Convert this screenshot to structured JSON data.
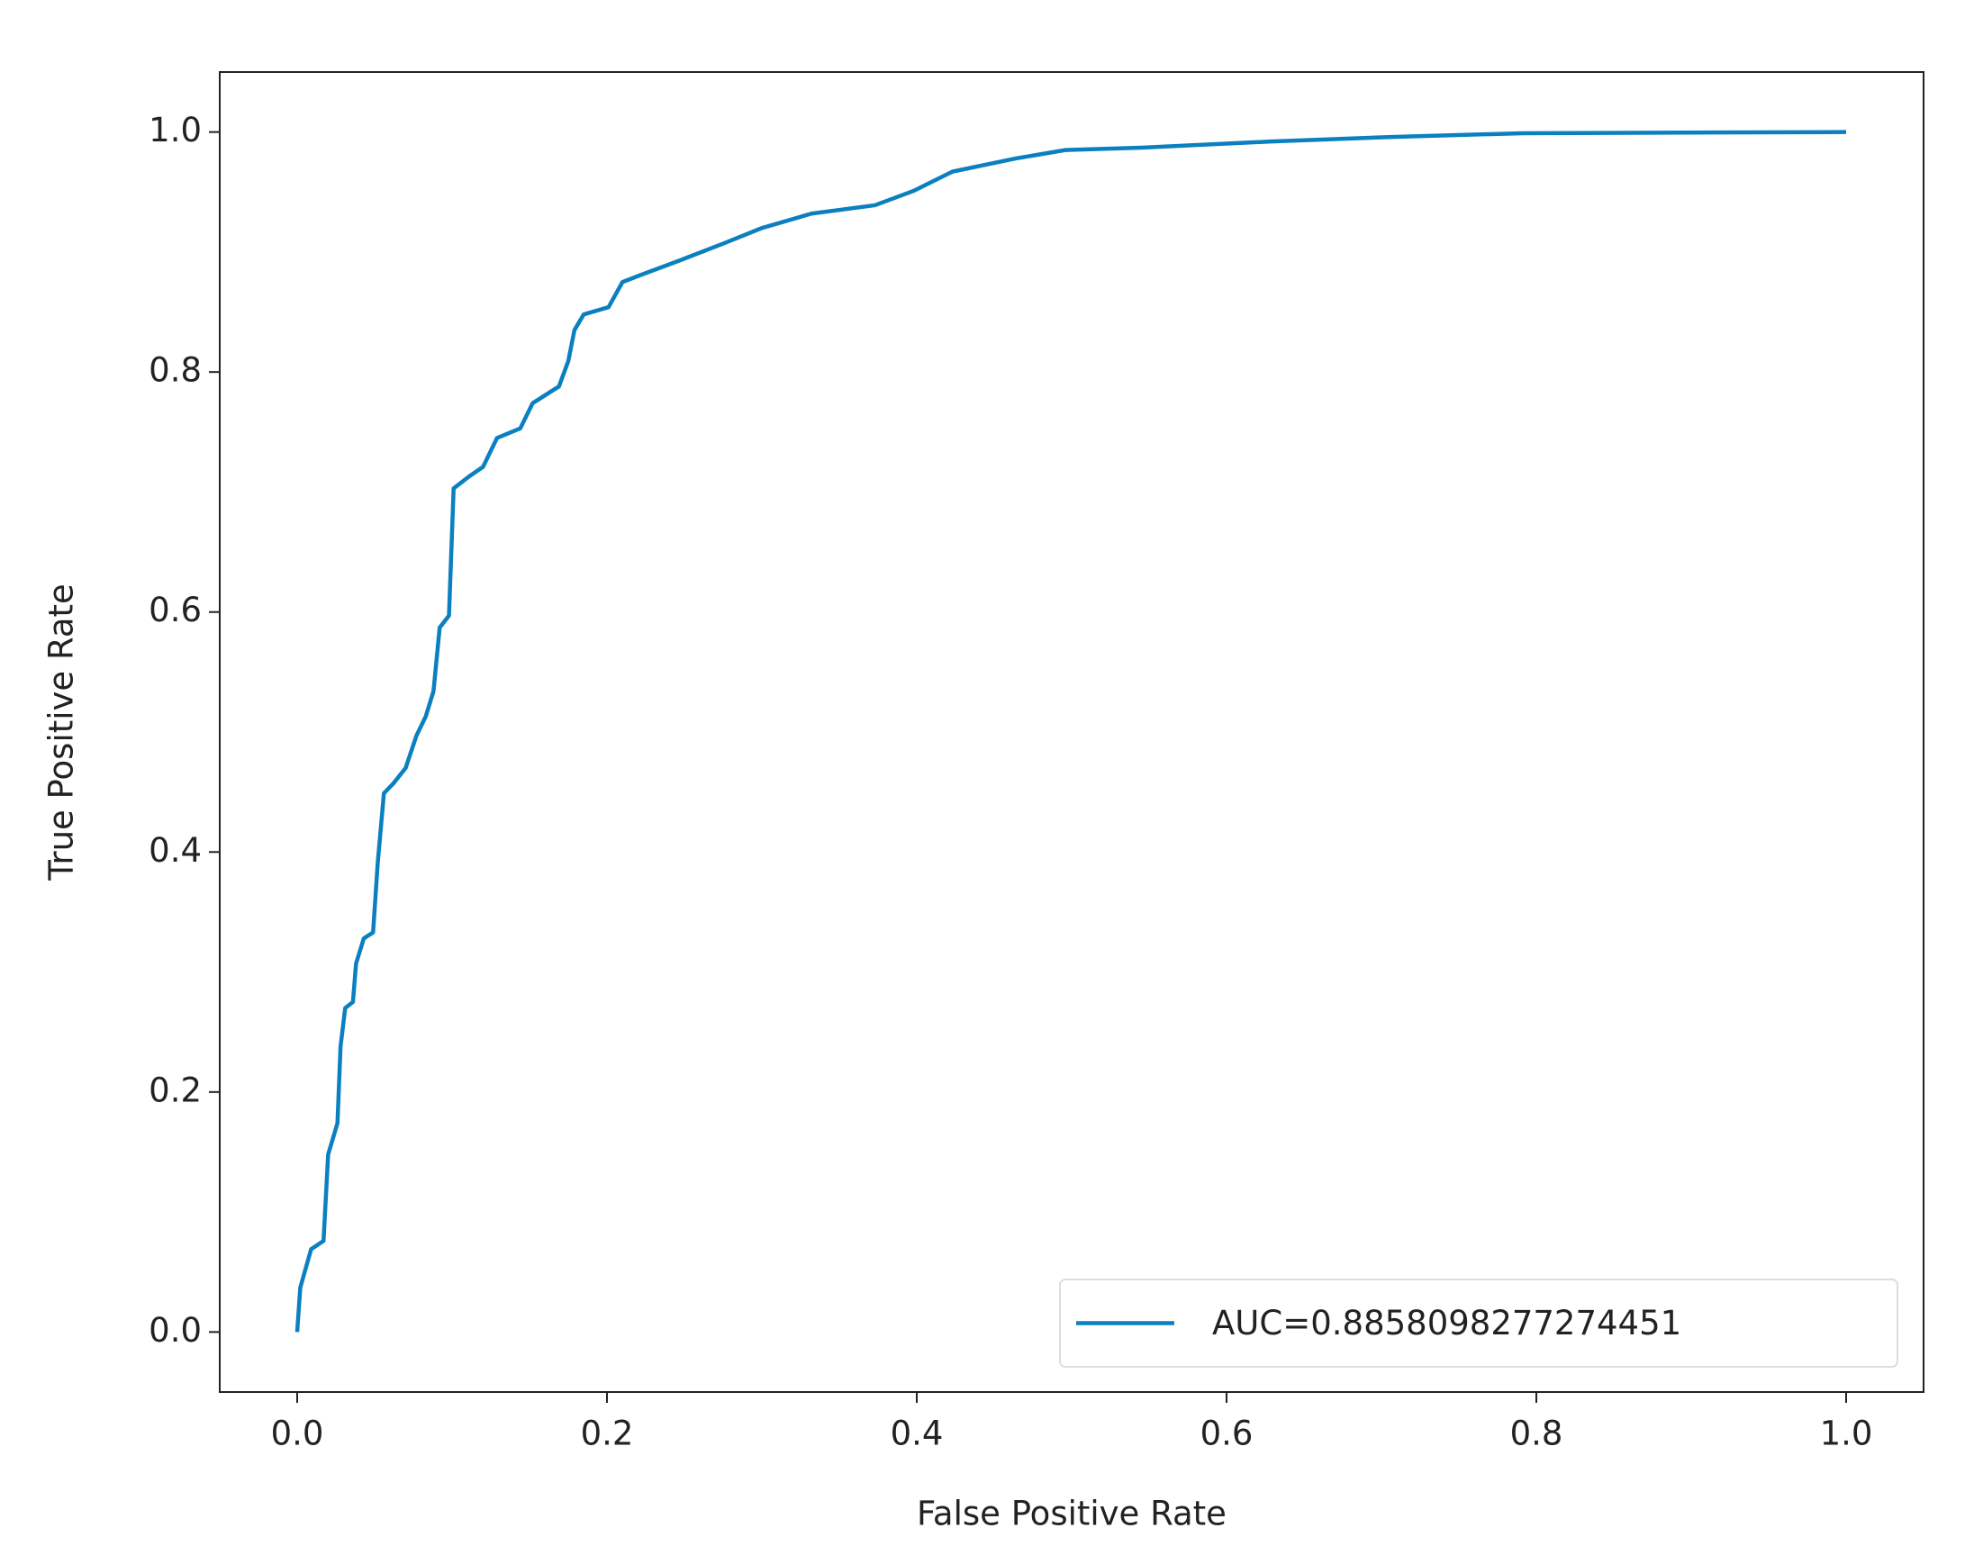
{
  "chart_data": {
    "type": "line",
    "x_label": "False Positive Rate",
    "y_label": "True Positive Rate",
    "x": [
      0,
      0.002,
      0.009,
      0.017,
      0.02,
      0.026,
      0.028,
      0.031,
      0.036,
      0.038,
      0.043,
      0.049,
      0.052,
      0.056,
      0.062,
      0.07,
      0.077,
      0.083,
      0.088,
      0.092,
      0.098,
      0.101,
      0.111,
      0.12,
      0.129,
      0.144,
      0.152,
      0.169,
      0.175,
      0.179,
      0.185,
      0.201,
      0.21,
      0.222,
      0.247,
      0.275,
      0.3,
      0.332,
      0.373,
      0.398,
      0.423,
      0.464,
      0.496,
      0.545,
      0.627,
      0.709,
      0.791,
      1.0
    ],
    "series": [
      {
        "name": "AUC=0.8858098277274451",
        "color": "#0b80c0",
        "values": [
          0,
          0.037,
          0.069,
          0.076,
          0.148,
          0.174,
          0.238,
          0.27,
          0.275,
          0.307,
          0.328,
          0.333,
          0.391,
          0.449,
          0.457,
          0.47,
          0.497,
          0.513,
          0.534,
          0.587,
          0.597,
          0.703,
          0.713,
          0.721,
          0.745,
          0.753,
          0.774,
          0.788,
          0.809,
          0.835,
          0.848,
          0.854,
          0.875,
          0.881,
          0.893,
          0.907,
          0.92,
          0.932,
          0.939,
          0.951,
          0.967,
          0.978,
          0.985,
          0.987,
          0.992,
          0.996,
          0.999,
          1.0
        ]
      }
    ],
    "xlim": [
      -0.05,
      1.05
    ],
    "ylim": [
      -0.05,
      1.05
    ],
    "xticks": [
      {
        "value": 0,
        "label": "0.0"
      },
      0.2,
      0.4,
      0.6,
      0.8,
      {
        "value": 1,
        "label": "1.0"
      }
    ],
    "yticks": [
      {
        "value": 0,
        "label": "0.0"
      },
      0.2,
      0.4,
      0.6,
      0.8,
      {
        "value": 1,
        "label": "1.0"
      }
    ],
    "grid": false,
    "legend": "lower right"
  }
}
